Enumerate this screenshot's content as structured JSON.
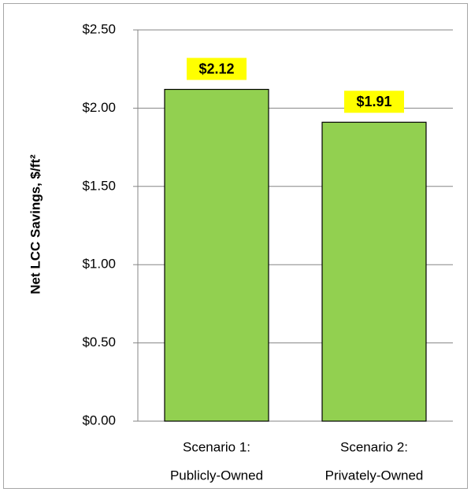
{
  "chart_data": {
    "type": "bar",
    "ylabel": "Net LCC Savings, $/ft²",
    "categories": [
      [
        "Scenario 1:",
        "Publicly-Owned"
      ],
      [
        "Scenario 2:",
        "Privately-Owned"
      ]
    ],
    "values": [
      2.12,
      1.91
    ],
    "value_labels": [
      "$2.12",
      "$1.91"
    ],
    "color": "#92d050",
    "ylim": [
      0,
      2.5
    ],
    "yticks": [
      {
        "value": 0,
        "label": "$0.00"
      },
      {
        "value": 0.5,
        "label": "$0.50"
      },
      {
        "value": 1,
        "label": "$1.00"
      },
      {
        "value": 1.5,
        "label": "$1.50"
      },
      {
        "value": 2,
        "label": "$2.00"
      },
      {
        "value": 2.5,
        "label": "$2.50"
      }
    ],
    "grid": true
  }
}
